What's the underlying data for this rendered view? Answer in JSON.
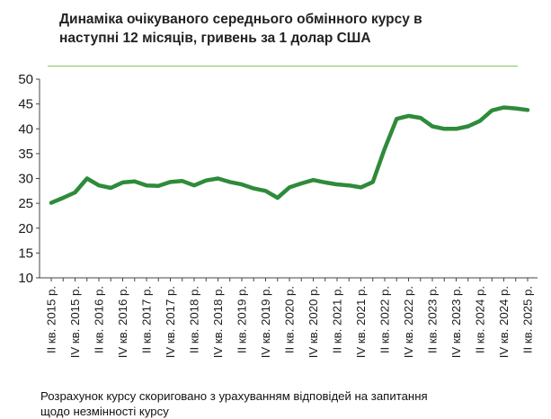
{
  "title_lines": [
    "Динаміка очікуваного середнього обмінного курсу в",
    "наступні 12 місяців, гривень за 1 долар США"
  ],
  "note_lines": [
    "Розрахунок курсу скориговано з урахуванням відповідей на запитання",
    "щодо незмінності курсу"
  ],
  "colors": {
    "line": "#2e8b3a",
    "rule": "#86c25a",
    "axis": "#444444"
  },
  "chart_data": {
    "type": "line",
    "title": "Динаміка очікуваного середнього обмінного курсу в наступні 12 місяців, гривень за 1 долар США",
    "ylim": [
      10,
      50
    ],
    "yticks": [
      10,
      15,
      20,
      25,
      30,
      35,
      40,
      45,
      50
    ],
    "grid": false,
    "legend": "none",
    "x_labels": [
      "II кв. 2015 р.",
      "IV кв. 2015 р.",
      "II кв. 2016 р.",
      "IV кв. 2016 р.",
      "II кв. 2017 р.",
      "IV кв. 2017 р.",
      "II кв. 2018 р.",
      "IV кв. 2018 р.",
      "II кв. 2019 р.",
      "IV кв. 2019 р.",
      "II кв. 2020 р.",
      "IV кв. 2020 р.",
      "II кв. 2021 р.",
      "IV кв. 2021 р.",
      "II кв. 2022 р.",
      "IV кв. 2022 р.",
      "II кв. 2023 р.",
      "IV кв. 2023 р.",
      "II кв. 2024 р.",
      "IV кв. 2024 р.",
      "II кв. 2025 р."
    ],
    "series": [
      {
        "values": [
          25.1,
          26.1,
          27.2,
          30.0,
          28.6,
          28.1,
          29.2,
          29.4,
          28.6,
          28.5,
          29.3,
          29.5,
          28.6,
          29.6,
          30.0,
          29.3,
          28.8,
          28.0,
          27.5,
          26.1,
          28.2,
          29.0,
          29.7,
          29.2,
          28.8,
          28.6,
          28.2,
          29.3,
          36.0,
          42.0,
          42.6,
          42.2,
          40.5,
          40.0,
          40.0,
          40.5,
          41.6,
          43.7,
          44.3,
          44.1,
          43.8
        ]
      }
    ]
  }
}
